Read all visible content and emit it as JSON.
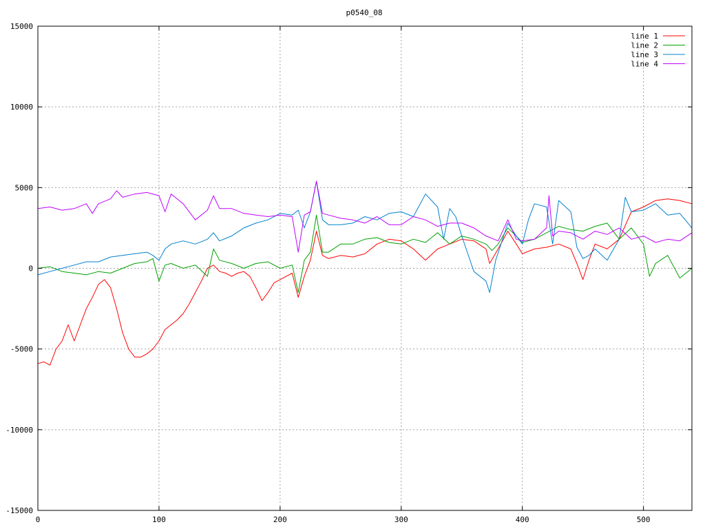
{
  "chart_data": {
    "type": "line",
    "title": "p0540_08",
    "xlabel": "",
    "ylabel": "",
    "xlim": [
      0,
      540
    ],
    "ylim": [
      -15000,
      15000
    ],
    "xticks": [
      0,
      100,
      200,
      300,
      400,
      500
    ],
    "xtick_labels": [
      "0",
      "100",
      "200",
      "300",
      "400",
      "500"
    ],
    "yticks": [
      -15000,
      -10000,
      -5000,
      0,
      5000,
      10000,
      15000
    ],
    "ytick_labels": [
      "-15000",
      "-10000",
      "-5000",
      "0",
      "5000",
      "10000",
      "15000"
    ],
    "grid": true,
    "legend_position": "top-right",
    "series": [
      {
        "name": "line 1",
        "color": "#ff0000",
        "x": [
          0,
          5,
          10,
          15,
          20,
          25,
          30,
          35,
          40,
          45,
          50,
          55,
          60,
          65,
          70,
          75,
          80,
          85,
          90,
          95,
          100,
          105,
          110,
          115,
          120,
          125,
          130,
          135,
          140,
          145,
          150,
          155,
          160,
          165,
          170,
          175,
          180,
          185,
          190,
          195,
          200,
          205,
          210,
          215,
          220,
          225,
          230,
          235,
          240,
          245,
          250,
          260,
          270,
          280,
          290,
          300,
          310,
          320,
          330,
          340,
          350,
          360,
          370,
          373,
          380,
          388,
          395,
          400,
          410,
          420,
          430,
          440,
          445,
          450,
          455,
          460,
          470,
          480,
          490,
          500,
          510,
          520,
          530,
          540
        ],
        "values": [
          -5900,
          -5800,
          -6000,
          -5000,
          -4500,
          -3500,
          -4500,
          -3500,
          -2500,
          -1800,
          -1000,
          -700,
          -1200,
          -2500,
          -4000,
          -5000,
          -5500,
          -5500,
          -5300,
          -5000,
          -4500,
          -3800,
          -3500,
          -3200,
          -2800,
          -2200,
          -1500,
          -800,
          0,
          200,
          -200,
          -300,
          -500,
          -300,
          -200,
          -500,
          -1200,
          -2000,
          -1500,
          -900,
          -700,
          -500,
          -300,
          -1800,
          -500,
          500,
          2300,
          800,
          600,
          700,
          800,
          700,
          900,
          1500,
          1800,
          1700,
          1200,
          500,
          1200,
          1500,
          1800,
          1700,
          1200,
          300,
          1200,
          2300,
          1500,
          900,
          1200,
          1300,
          1500,
          1200,
          300,
          -700,
          500,
          1500,
          1200,
          1800,
          3500,
          3800,
          4200,
          4300,
          4200,
          4000
        ]
      },
      {
        "name": "line 2",
        "color": "#00a000",
        "x": [
          0,
          10,
          20,
          30,
          40,
          50,
          60,
          70,
          80,
          90,
          95,
          100,
          105,
          110,
          120,
          130,
          140,
          145,
          150,
          160,
          170,
          180,
          190,
          200,
          210,
          215,
          220,
          225,
          230,
          235,
          240,
          250,
          260,
          270,
          280,
          290,
          300,
          310,
          320,
          330,
          340,
          350,
          360,
          370,
          375,
          380,
          388,
          395,
          400,
          410,
          420,
          430,
          440,
          450,
          460,
          470,
          480,
          490,
          500,
          505,
          510,
          520,
          530,
          540
        ],
        "values": [
          0,
          100,
          -200,
          -300,
          -400,
          -200,
          -300,
          0,
          300,
          400,
          600,
          -800,
          200,
          300,
          0,
          200,
          -500,
          1200,
          500,
          300,
          0,
          300,
          400,
          0,
          200,
          -1500,
          500,
          1000,
          3300,
          1000,
          1000,
          1500,
          1500,
          1800,
          1900,
          1600,
          1500,
          1800,
          1600,
          2200,
          1500,
          2000,
          1800,
          1500,
          1100,
          1500,
          2500,
          2000,
          1600,
          1800,
          2200,
          2600,
          2400,
          2300,
          2600,
          2800,
          1800,
          2500,
          1500,
          -500,
          300,
          800,
          -600,
          0
        ]
      },
      {
        "name": "line 3",
        "color": "#0080d0",
        "x": [
          0,
          10,
          20,
          30,
          40,
          50,
          60,
          70,
          80,
          90,
          95,
          100,
          105,
          110,
          120,
          130,
          140,
          145,
          150,
          160,
          170,
          180,
          190,
          200,
          210,
          215,
          220,
          225,
          230,
          235,
          240,
          250,
          260,
          270,
          280,
          290,
          300,
          310,
          320,
          330,
          335,
          340,
          345,
          350,
          360,
          370,
          373,
          378,
          388,
          395,
          400,
          405,
          410,
          420,
          425,
          430,
          440,
          445,
          450,
          455,
          460,
          470,
          480,
          485,
          490,
          500,
          510,
          520,
          530,
          540
        ],
        "values": [
          -400,
          -200,
          0,
          200,
          400,
          400,
          700,
          800,
          900,
          1000,
          800,
          500,
          1200,
          1500,
          1700,
          1500,
          1800,
          2200,
          1700,
          2000,
          2500,
          2800,
          3000,
          3400,
          3300,
          3600,
          2500,
          3500,
          5400,
          3000,
          2700,
          2700,
          2800,
          3200,
          3000,
          3400,
          3500,
          3200,
          4600,
          3800,
          1800,
          3700,
          3200,
          2000,
          -200,
          -800,
          -1500,
          500,
          2800,
          2000,
          1500,
          3000,
          4000,
          3800,
          1500,
          4200,
          3500,
          1300,
          600,
          800,
          1200,
          500,
          1800,
          4400,
          3500,
          3600,
          4000,
          3300,
          3400,
          2500
        ]
      },
      {
        "name": "line 4",
        "color": "#c000ff",
        "x": [
          0,
          10,
          20,
          30,
          40,
          45,
          50,
          60,
          65,
          70,
          80,
          90,
          100,
          105,
          110,
          120,
          130,
          140,
          145,
          150,
          160,
          170,
          180,
          190,
          200,
          210,
          215,
          220,
          225,
          230,
          235,
          240,
          250,
          260,
          270,
          280,
          290,
          300,
          310,
          320,
          330,
          340,
          350,
          360,
          370,
          380,
          388,
          395,
          400,
          410,
          420,
          422,
          425,
          430,
          440,
          450,
          460,
          470,
          480,
          490,
          500,
          510,
          520,
          530,
          540
        ],
        "values": [
          3700,
          3800,
          3600,
          3700,
          4000,
          3400,
          4000,
          4300,
          4800,
          4400,
          4600,
          4700,
          4500,
          3500,
          4600,
          4000,
          3000,
          3600,
          4500,
          3700,
          3700,
          3400,
          3300,
          3200,
          3300,
          3200,
          1000,
          3300,
          3500,
          5400,
          3400,
          3300,
          3100,
          3000,
          2800,
          3200,
          2700,
          2700,
          3200,
          3000,
          2600,
          2800,
          2800,
          2500,
          2000,
          1700,
          3000,
          1800,
          1700,
          1800,
          2500,
          4500,
          2000,
          2300,
          2200,
          1800,
          2300,
          2100,
          2500,
          1800,
          2000,
          1600,
          1800,
          1700,
          2200
        ]
      }
    ]
  }
}
